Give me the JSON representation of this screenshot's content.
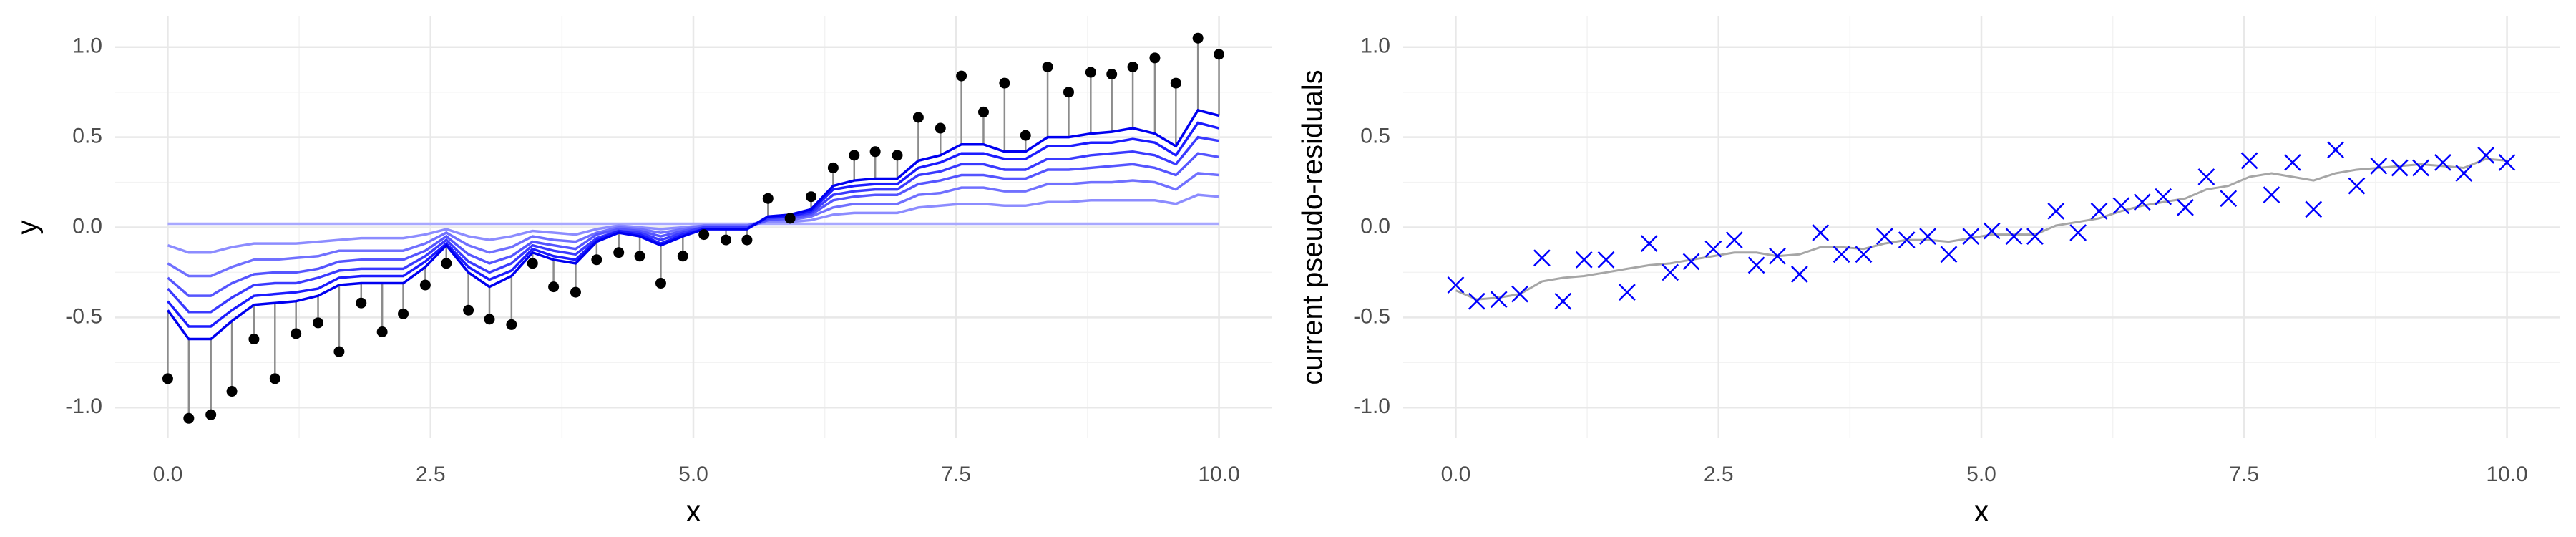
{
  "chart_data": [
    {
      "type": "stem",
      "xlabel": "x",
      "ylabel": "y",
      "x": [
        0,
        0.2,
        0.41,
        0.61,
        0.82,
        1.02,
        1.22,
        1.43,
        1.63,
        1.84,
        2.04,
        2.24,
        2.45,
        2.65,
        2.86,
        3.06,
        3.27,
        3.47,
        3.67,
        3.88,
        4.08,
        4.29,
        4.49,
        4.69,
        4.9,
        5.1,
        5.31,
        5.51,
        5.71,
        5.92,
        6.12,
        6.33,
        6.53,
        6.73,
        6.94,
        7.14,
        7.35,
        7.55,
        7.76,
        7.96,
        8.16,
        8.37,
        8.57,
        8.78,
        8.98,
        9.18,
        9.39,
        9.59,
        9.8,
        10
      ],
      "points": {
        "color": "#000000",
        "stem_color": "#8c8c8c",
        "values": [
          -0.84,
          -1.06,
          -1.04,
          -0.91,
          -0.62,
          -0.84,
          -0.59,
          -0.53,
          -0.69,
          -0.42,
          -0.58,
          -0.48,
          -0.32,
          -0.2,
          -0.46,
          -0.51,
          -0.54,
          -0.2,
          -0.33,
          -0.36,
          -0.18,
          -0.14,
          -0.16,
          -0.31,
          -0.16,
          -0.04,
          -0.07,
          -0.07,
          0.16,
          0.05,
          0.17,
          0.33,
          0.4,
          0.42,
          0.4,
          0.61,
          0.55,
          0.84,
          0.64,
          0.8,
          0.51,
          0.89,
          0.75,
          0.86,
          0.85,
          0.89,
          0.94,
          0.8,
          1.05,
          0.96
        ]
      },
      "series": [
        {
          "color": "#a8a8ff",
          "values": [
            0.02,
            0.02,
            0.02,
            0.02,
            0.02,
            0.02,
            0.02,
            0.02,
            0.02,
            0.02,
            0.02,
            0.02,
            0.02,
            0.02,
            0.02,
            0.02,
            0.02,
            0.02,
            0.02,
            0.02,
            0.02,
            0.02,
            0.02,
            0.02,
            0.02,
            0.02,
            0.02,
            0.02,
            0.02,
            0.02,
            0.02,
            0.02,
            0.02,
            0.02,
            0.02,
            0.02,
            0.02,
            0.02,
            0.02,
            0.02,
            0.02,
            0.02,
            0.02,
            0.02,
            0.02,
            0.02,
            0.02,
            0.02,
            0.02,
            0.02
          ]
        },
        {
          "color": "#8c8cff",
          "values": [
            -0.1,
            -0.14,
            -0.14,
            -0.11,
            -0.09,
            -0.09,
            -0.09,
            -0.08,
            -0.07,
            -0.06,
            -0.06,
            -0.06,
            -0.04,
            -0.01,
            -0.05,
            -0.07,
            -0.05,
            -0.02,
            -0.03,
            -0.04,
            -0.01,
            0.01,
            0,
            -0.01,
            0,
            0.01,
            0.01,
            0.01,
            0.03,
            0.03,
            0.04,
            0.07,
            0.08,
            0.08,
            0.08,
            0.11,
            0.12,
            0.13,
            0.13,
            0.12,
            0.12,
            0.14,
            0.14,
            0.15,
            0.15,
            0.15,
            0.15,
            0.13,
            0.18,
            0.17
          ]
        },
        {
          "color": "#7070ff",
          "values": [
            -0.2,
            -0.27,
            -0.27,
            -0.22,
            -0.18,
            -0.18,
            -0.17,
            -0.16,
            -0.13,
            -0.13,
            -0.13,
            -0.13,
            -0.09,
            -0.03,
            -0.1,
            -0.14,
            -0.11,
            -0.05,
            -0.07,
            -0.08,
            -0.03,
            0,
            -0.01,
            -0.03,
            -0.01,
            0.01,
            0.01,
            0.01,
            0.04,
            0.04,
            0.06,
            0.11,
            0.13,
            0.13,
            0.13,
            0.18,
            0.19,
            0.22,
            0.22,
            0.2,
            0.2,
            0.24,
            0.24,
            0.25,
            0.25,
            0.26,
            0.25,
            0.21,
            0.3,
            0.29
          ]
        },
        {
          "color": "#5555ff",
          "values": [
            -0.28,
            -0.38,
            -0.38,
            -0.31,
            -0.26,
            -0.25,
            -0.25,
            -0.23,
            -0.19,
            -0.18,
            -0.18,
            -0.18,
            -0.13,
            -0.05,
            -0.15,
            -0.2,
            -0.16,
            -0.08,
            -0.1,
            -0.12,
            -0.04,
            -0.01,
            -0.02,
            -0.05,
            -0.02,
            0,
            0,
            0,
            0.04,
            0.05,
            0.07,
            0.15,
            0.17,
            0.18,
            0.18,
            0.24,
            0.26,
            0.29,
            0.29,
            0.27,
            0.27,
            0.32,
            0.32,
            0.33,
            0.34,
            0.35,
            0.33,
            0.29,
            0.41,
            0.39
          ]
        },
        {
          "color": "#3a3aff",
          "values": [
            -0.34,
            -0.47,
            -0.47,
            -0.39,
            -0.32,
            -0.31,
            -0.31,
            -0.28,
            -0.24,
            -0.23,
            -0.23,
            -0.23,
            -0.16,
            -0.07,
            -0.19,
            -0.25,
            -0.2,
            -0.1,
            -0.13,
            -0.15,
            -0.06,
            -0.02,
            -0.03,
            -0.07,
            -0.03,
            0,
            0,
            0,
            0.05,
            0.06,
            0.08,
            0.18,
            0.2,
            0.21,
            0.21,
            0.29,
            0.31,
            0.35,
            0.35,
            0.32,
            0.32,
            0.38,
            0.38,
            0.4,
            0.41,
            0.42,
            0.4,
            0.35,
            0.5,
            0.48
          ]
        },
        {
          "color": "#1c1cff",
          "values": [
            -0.41,
            -0.55,
            -0.55,
            -0.46,
            -0.38,
            -0.37,
            -0.36,
            -0.34,
            -0.28,
            -0.27,
            -0.27,
            -0.27,
            -0.19,
            -0.09,
            -0.22,
            -0.29,
            -0.24,
            -0.12,
            -0.16,
            -0.18,
            -0.07,
            -0.02,
            -0.04,
            -0.09,
            -0.04,
            -0.01,
            -0.01,
            -0.01,
            0.06,
            0.06,
            0.09,
            0.21,
            0.23,
            0.24,
            0.24,
            0.33,
            0.36,
            0.41,
            0.41,
            0.38,
            0.38,
            0.45,
            0.45,
            0.47,
            0.47,
            0.49,
            0.47,
            0.4,
            0.58,
            0.55
          ]
        },
        {
          "color": "#0000f0",
          "values": [
            -0.46,
            -0.62,
            -0.62,
            -0.52,
            -0.43,
            -0.42,
            -0.41,
            -0.38,
            -0.32,
            -0.31,
            -0.31,
            -0.31,
            -0.22,
            -0.1,
            -0.25,
            -0.33,
            -0.27,
            -0.14,
            -0.18,
            -0.2,
            -0.08,
            -0.03,
            -0.05,
            -0.1,
            -0.05,
            -0.01,
            -0.01,
            -0.01,
            0.06,
            0.07,
            0.1,
            0.23,
            0.26,
            0.27,
            0.27,
            0.37,
            0.4,
            0.46,
            0.46,
            0.42,
            0.42,
            0.5,
            0.5,
            0.52,
            0.53,
            0.55,
            0.52,
            0.45,
            0.65,
            0.62
          ]
        }
      ],
      "xlim": [
        -0.5,
        10.5
      ],
      "ylim": [
        -1.17,
        1.17
      ],
      "xticks": [
        {
          "value": 0,
          "label": "0.0"
        },
        2.5,
        {
          "value": 5,
          "label": "5.0"
        },
        7.5,
        {
          "value": 10,
          "label": "10.0"
        }
      ],
      "yticks": [
        {
          "value": -1,
          "label": "-1.0"
        },
        -0.5,
        {
          "value": 0,
          "label": "0.0"
        },
        0.5,
        {
          "value": 1,
          "label": "1.0"
        }
      ],
      "grid": true,
      "minor_grid": true
    },
    {
      "type": "scatter",
      "xlabel": "x",
      "ylabel": "current pseudo-residuals",
      "x": [
        0,
        0.2,
        0.41,
        0.61,
        0.82,
        1.02,
        1.22,
        1.43,
        1.63,
        1.84,
        2.04,
        2.24,
        2.45,
        2.65,
        2.86,
        3.06,
        3.27,
        3.47,
        3.67,
        3.88,
        4.08,
        4.29,
        4.49,
        4.69,
        4.9,
        5.1,
        5.31,
        5.51,
        5.71,
        5.92,
        6.12,
        6.33,
        6.53,
        6.73,
        6.94,
        7.14,
        7.35,
        7.55,
        7.76,
        7.96,
        8.16,
        8.37,
        8.57,
        8.78,
        8.98,
        9.18,
        9.39,
        9.59,
        9.8,
        10
      ],
      "series": [
        {
          "marker": "x",
          "color": "#0000ff",
          "values": [
            -0.32,
            -0.41,
            -0.4,
            -0.37,
            -0.17,
            -0.41,
            -0.18,
            -0.18,
            -0.36,
            -0.09,
            -0.25,
            -0.19,
            -0.12,
            -0.07,
            -0.21,
            -0.16,
            -0.26,
            -0.03,
            -0.15,
            -0.15,
            -0.05,
            -0.07,
            -0.05,
            -0.15,
            -0.05,
            -0.02,
            -0.05,
            -0.05,
            0.09,
            -0.03,
            0.09,
            0.12,
            0.14,
            0.17,
            0.11,
            0.28,
            0.16,
            0.37,
            0.18,
            0.36,
            0.1,
            0.43,
            0.23,
            0.34,
            0.33,
            0.33,
            0.36,
            0.3,
            0.4,
            0.36
          ]
        },
        {
          "marker": "line",
          "color": "#a6a6a6",
          "values": [
            -0.35,
            -0.4,
            -0.39,
            -0.37,
            -0.3,
            -0.28,
            -0.27,
            -0.25,
            -0.23,
            -0.21,
            -0.2,
            -0.18,
            -0.16,
            -0.14,
            -0.14,
            -0.16,
            -0.15,
            -0.11,
            -0.11,
            -0.12,
            -0.09,
            -0.07,
            -0.07,
            -0.08,
            -0.06,
            -0.04,
            -0.04,
            -0.04,
            0.01,
            0.03,
            0.05,
            0.09,
            0.12,
            0.14,
            0.16,
            0.21,
            0.23,
            0.28,
            0.3,
            0.28,
            0.26,
            0.3,
            0.32,
            0.33,
            0.34,
            0.35,
            0.34,
            0.33,
            0.38,
            0.37
          ]
        }
      ],
      "xlim": [
        -0.5,
        10.5
      ],
      "ylim": [
        -1.17,
        1.17
      ],
      "xticks": [
        {
          "value": 0,
          "label": "0.0"
        },
        2.5,
        {
          "value": 5,
          "label": "5.0"
        },
        7.5,
        {
          "value": 10,
          "label": "10.0"
        }
      ],
      "yticks": [
        {
          "value": -1,
          "label": "-1.0"
        },
        -0.5,
        {
          "value": 0,
          "label": "0.0"
        },
        0.5,
        {
          "value": 1,
          "label": "1.0"
        }
      ],
      "grid": true,
      "minor_grid": true
    }
  ]
}
